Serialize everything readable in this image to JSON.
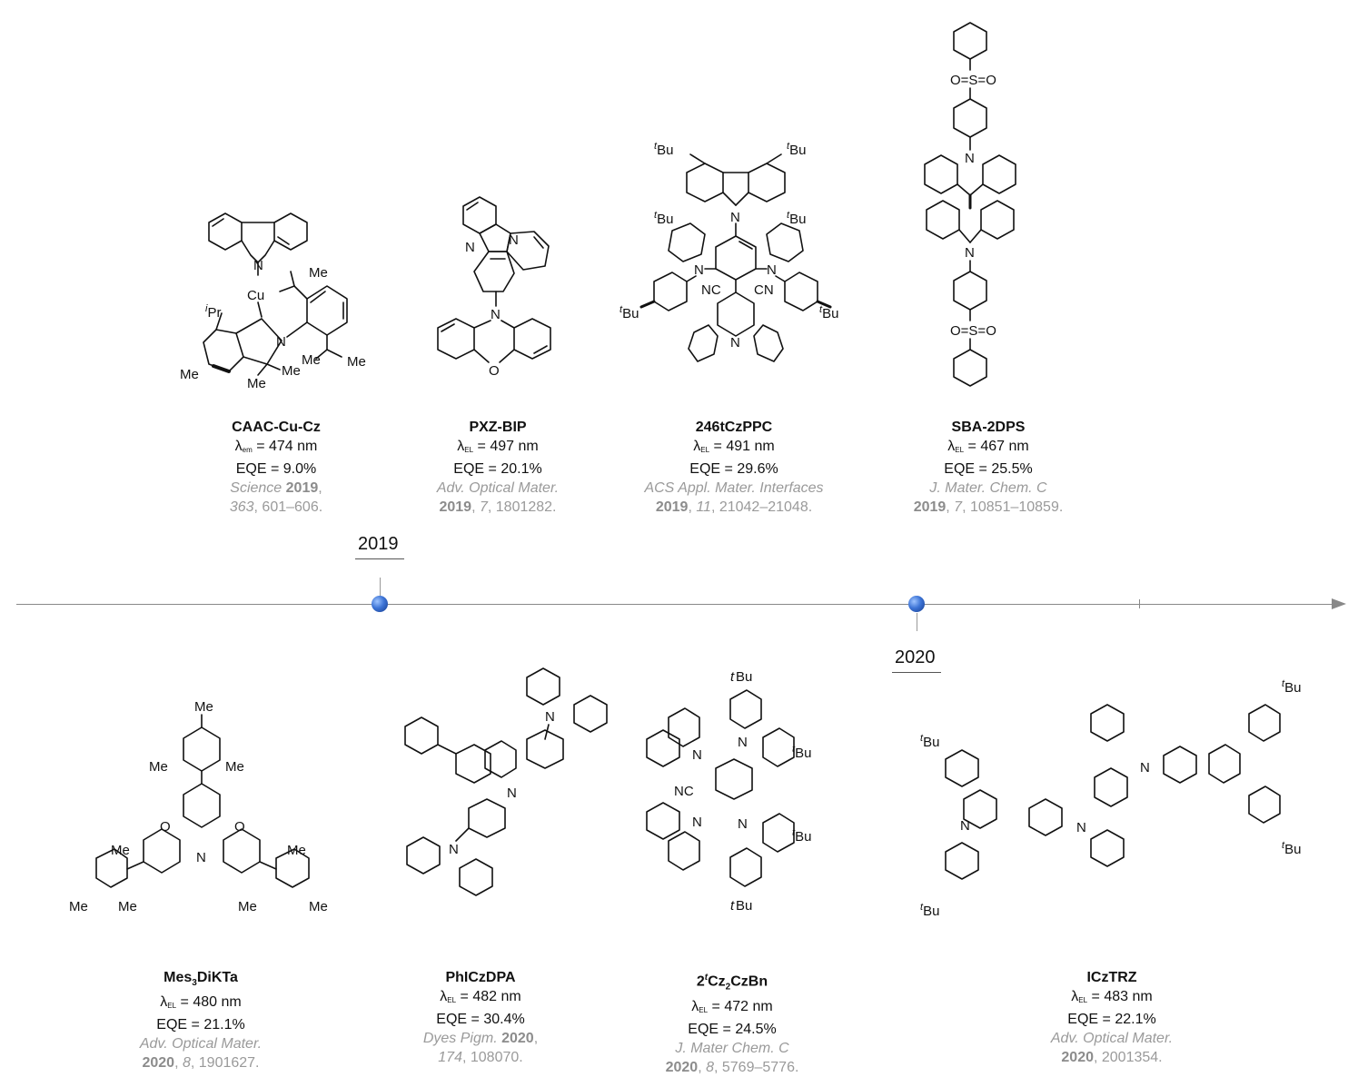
{
  "timeline": {
    "years": [
      {
        "label": "2019"
      },
      {
        "label": "2020"
      }
    ]
  },
  "colors": {
    "reference_text": "#9a9a9a",
    "axis": "#888888",
    "marker": "#3d74d6"
  },
  "entries_top": [
    {
      "name": "CAAC-Cu-Cz",
      "lambda_sub": "em",
      "lambda_value": "= 474 nm",
      "eqe": "EQE = 9.0%",
      "ref_journal": "Science",
      "ref_year": "2019",
      "ref_rest": ",",
      "ref_line2_vol": "363",
      "ref_line2_pages": ", 601–606."
    },
    {
      "name": "PXZ-BIP",
      "lambda_sub": "EL",
      "lambda_value": "= 497 nm",
      "eqe": "EQE = 20.1%",
      "ref_journal": "Adv. Optical Mater.",
      "ref_year": "2019",
      "ref_line2_vol": "7",
      "ref_line2_pages": ", 1801282."
    },
    {
      "name": "246tCzPPC",
      "lambda_sub": "EL",
      "lambda_value": "= 491 nm",
      "eqe": "EQE = 29.6%",
      "ref_journal": "ACS Appl. Mater. Interfaces",
      "ref_year": "2019",
      "ref_line2_vol": "11",
      "ref_line2_pages": ", 21042–21048."
    },
    {
      "name": "SBA-2DPS",
      "lambda_sub": "EL",
      "lambda_value": "= 467 nm",
      "eqe": "EQE = 25.5%",
      "ref_journal": "J. Mater. Chem. C",
      "ref_year": "2019",
      "ref_line2_vol": "7",
      "ref_line2_pages": ", 10851–10859."
    }
  ],
  "entries_bottom": [
    {
      "name_a": "Mes",
      "name_sub": "3",
      "name_b": "DiKTa",
      "lambda_sub": "EL",
      "lambda_value": "= 480 nm",
      "eqe": "EQE = 21.1%",
      "ref_journal": "Adv. Optical Mater.",
      "ref_year": "2020",
      "ref_line2_vol": "8",
      "ref_line2_pages": ", 1901627."
    },
    {
      "name": "PhICzDPA",
      "lambda_sub": "EL",
      "lambda_value": "= 482 nm",
      "eqe": "EQE = 30.4%",
      "ref_journal": "Dyes Pigm.",
      "ref_year": "2020",
      "ref_line2_vol": "174",
      "ref_line2_pages": ", 108070."
    },
    {
      "name_a": "2",
      "name_sup": "t",
      "name_b": "Cz",
      "name_sub": "2",
      "name_c": "CzBn",
      "lambda_sub": "EL",
      "lambda_value": "= 472 nm",
      "eqe": "EQE = 24.5%",
      "ref_journal": "J. Mater Chem. C",
      "ref_year": "2020",
      "ref_line2_vol": "8",
      "ref_line2_pages": ", 5769–5776."
    },
    {
      "name": "ICzTRZ",
      "lambda_sub": "EL",
      "lambda_value": "= 483 nm",
      "eqe": "EQE = 22.1%",
      "ref_journal": "Adv. Optical Mater.",
      "ref_year": "2020",
      "ref_line2_pages": ", 2001354."
    }
  ],
  "structure_labels": {
    "caac": {
      "n1": "N",
      "cu": "Cu",
      "ipr_sup": "i",
      "ipr": "Pr",
      "n2": "N",
      "me1": "Me",
      "me2": "Me",
      "me3": "Me",
      "me4": "Me",
      "me5": "Me",
      "me6": "Me"
    },
    "pxz": {
      "n1": "N",
      "n2": "N",
      "n3": "N",
      "o": "O"
    },
    "tczppc": {
      "tbu_sup": "t",
      "bu": "Bu",
      "n": "N",
      "cn": "CN",
      "nc": "NC"
    },
    "sba": {
      "so2": "O=S=O",
      "n": "N"
    },
    "mes": {
      "me": "Me",
      "o": "O",
      "n": "N"
    },
    "phicz": {
      "n": "N"
    },
    "cz2czbn": {
      "n": "N",
      "nc": "NC",
      "tbu_sup": "t",
      "bu": "Bu"
    },
    "icztrz": {
      "n": "N",
      "tbu_sup": "t",
      "bu": "Bu"
    }
  }
}
